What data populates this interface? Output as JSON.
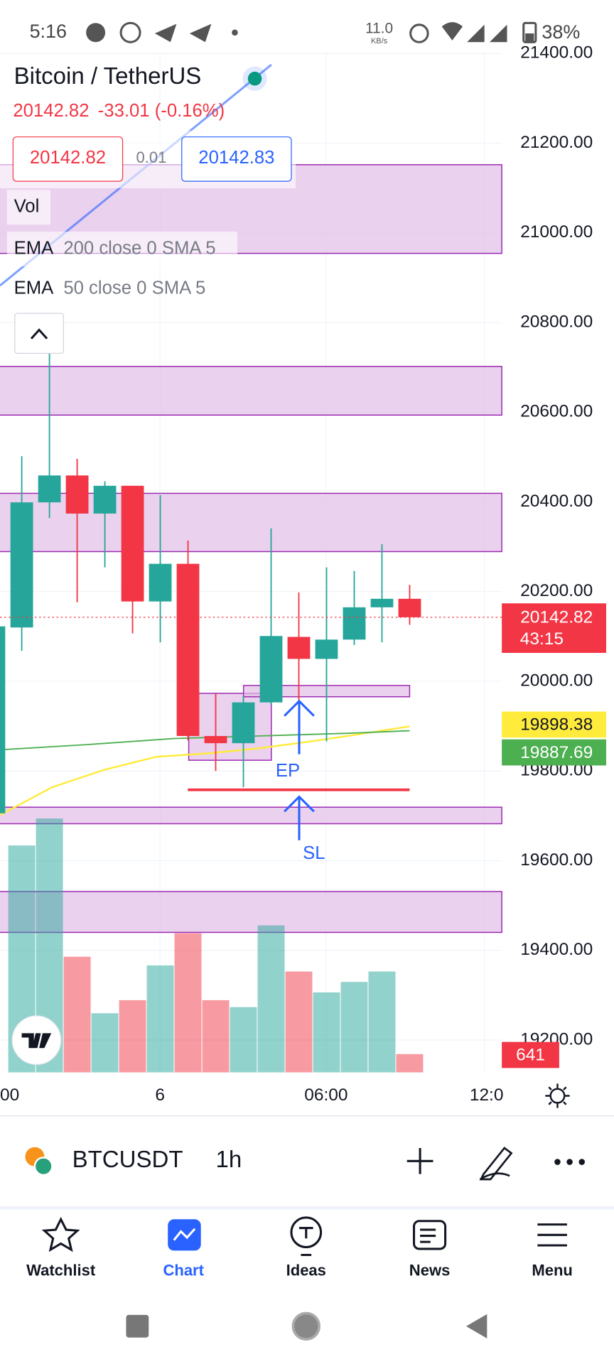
{
  "status_bar": {
    "time": "5:16",
    "net_speed": "11.0",
    "net_unit": "KB/s",
    "battery": "38%"
  },
  "header": {
    "symbol_name": "Bitcoin / TetherUS",
    "last_price": "20142.82",
    "change": "-33.01 (-0.16%)",
    "bid": "20142.82",
    "spread": "0.01",
    "ask": "20142.83"
  },
  "indicators": [
    {
      "name": "Vol"
    },
    {
      "name": "EMA",
      "params": "200 close 0 SMA 5"
    },
    {
      "name": "EMA",
      "params": "50 close 0 SMA 5"
    }
  ],
  "chart_data": {
    "type": "candlestick",
    "open": [
      20120,
      20399,
      20459,
      20374,
      20436,
      20178,
      20262,
      19878,
      19862,
      19953,
      20099,
      20050,
      20093,
      20165,
      20184
    ],
    "high": [
      20502,
      20752,
      20496,
      20446,
      20436,
      20415,
      20314,
      19973,
      19967,
      20341,
      20198,
      20254,
      20246,
      20306,
      20215
    ],
    "low": [
      20068,
      20364,
      20176,
      20254,
      20107,
      20087,
      19868,
      19800,
      19764,
      19948,
      19948,
      19866,
      20081,
      20087,
      20126
    ],
    "close": [
      20399,
      20459,
      20374,
      20436,
      20178,
      20262,
      19878,
      19862,
      19953,
      20101,
      20050,
      20093,
      20165,
      20184,
      20142.82
    ],
    "volume": [
      7960,
      8906,
      4057,
      2074,
      2532,
      3752,
      4880,
      2532,
      2288,
      5155,
      3538,
      2806,
      3172,
      3538,
      641
    ],
    "up_color": "#26a69a",
    "down_color": "#f23645",
    "ylim": [
      19128,
      21402
    ],
    "yticks": [
      {
        "value": 21400,
        "label": "21400.00"
      },
      {
        "value": 21200,
        "label": "21200.00"
      },
      {
        "value": 21000,
        "label": "21000.00"
      },
      {
        "value": 20800,
        "label": "20800.00"
      },
      {
        "value": 20600,
        "label": "20600.00"
      },
      {
        "value": 20400,
        "label": "20400.00"
      },
      {
        "value": 20200,
        "label": "20200.00"
      },
      {
        "value": 20000,
        "label": "20000.00"
      },
      {
        "value": 19800,
        "label": "19800.00"
      },
      {
        "value": 19600,
        "label": "19600.00"
      },
      {
        "value": 19400,
        "label": "19400.00"
      },
      {
        "value": 19200,
        "label": "19200.00"
      }
    ],
    "time_labels": [
      "00",
      "6",
      "06:00",
      "12:0"
    ],
    "countdown": "43:15",
    "ema_labels": [
      {
        "value": 19898.38,
        "color": "#ffeb3b"
      },
      {
        "value": 19887.69,
        "color": "#4caf50"
      }
    ],
    "annotations": [
      "EP",
      "SL"
    ]
  },
  "toolbar": {
    "symbol": "BTCUSDT",
    "interval": "1h"
  },
  "nav": [
    "Watchlist",
    "Chart",
    "Ideas",
    "News",
    "Menu"
  ]
}
